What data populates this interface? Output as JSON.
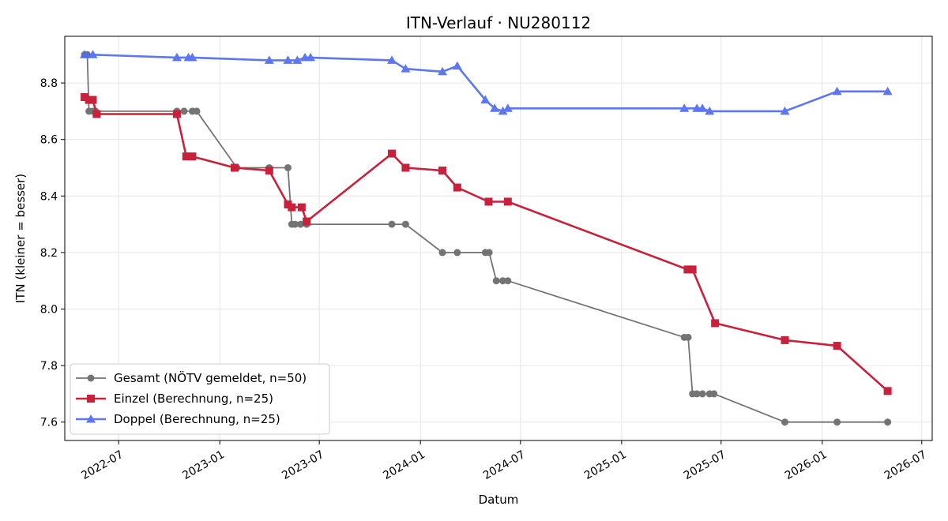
{
  "chart_data": {
    "type": "line",
    "title": "ITN-Verlauf · NU280112",
    "xlabel": "Datum",
    "ylabel": "ITN  (kleiner = besser)",
    "x_type": "date",
    "xlim": [
      "2022-03-25",
      "2026-07-20"
    ],
    "ylim": [
      7.535,
      8.965
    ],
    "x_ticks": [
      "2022-07-01",
      "2023-01-01",
      "2023-07-01",
      "2024-01-01",
      "2024-07-01",
      "2025-01-01",
      "2025-07-01",
      "2026-01-01",
      "2026-07-01"
    ],
    "x_tick_labels": [
      "2022-07",
      "2023-01",
      "2023-07",
      "2024-01",
      "2024-07",
      "2025-01",
      "2025-07",
      "2026-01",
      "2026-07"
    ],
    "y_ticks": [
      7.6,
      7.8,
      8.0,
      8.2,
      8.4,
      8.6,
      8.8
    ],
    "y_tick_labels": [
      "7.6",
      "7.8",
      "8.0",
      "8.2",
      "8.4",
      "8.6",
      "8.8"
    ],
    "grid": true,
    "legend_position": "bottom-left",
    "series": [
      {
        "name": "Gesamt (NÖTV gemeldet, n=50)",
        "color": "#404040",
        "marker": "circle",
        "points": [
          [
            "2022-04-30",
            8.9
          ],
          [
            "2022-05-05",
            8.9
          ],
          [
            "2022-05-08",
            8.7
          ],
          [
            "2022-05-15",
            8.7
          ],
          [
            "2022-05-20",
            8.7
          ],
          [
            "2022-10-15",
            8.7
          ],
          [
            "2022-10-28",
            8.7
          ],
          [
            "2022-11-12",
            8.7
          ],
          [
            "2022-11-20",
            8.7
          ],
          [
            "2023-02-01",
            8.5
          ],
          [
            "2023-04-01",
            8.5
          ],
          [
            "2023-05-05",
            8.5
          ],
          [
            "2023-05-12",
            8.3
          ],
          [
            "2023-05-18",
            8.3
          ],
          [
            "2023-05-28",
            8.3
          ],
          [
            "2023-06-08",
            8.3
          ],
          [
            "2023-11-10",
            8.3
          ],
          [
            "2023-12-05",
            8.3
          ],
          [
            "2024-02-10",
            8.2
          ],
          [
            "2024-03-08",
            8.2
          ],
          [
            "2024-04-28",
            8.2
          ],
          [
            "2024-05-05",
            8.2
          ],
          [
            "2024-05-18",
            8.1
          ],
          [
            "2024-05-30",
            8.1
          ],
          [
            "2024-06-08",
            8.1
          ],
          [
            "2025-04-25",
            7.9
          ],
          [
            "2025-05-02",
            7.9
          ],
          [
            "2025-05-10",
            7.7
          ],
          [
            "2025-05-18",
            7.7
          ],
          [
            "2025-05-28",
            7.7
          ],
          [
            "2025-06-10",
            7.7
          ],
          [
            "2025-06-18",
            7.7
          ],
          [
            "2025-10-25",
            7.6
          ],
          [
            "2026-01-28",
            7.6
          ],
          [
            "2026-04-30",
            7.6
          ]
        ]
      },
      {
        "name": "Einzel (Berechnung, n=25)",
        "color": "#c8213c",
        "marker": "square",
        "points": [
          [
            "2022-04-30",
            8.75
          ],
          [
            "2022-05-08",
            8.74
          ],
          [
            "2022-05-15",
            8.74
          ],
          [
            "2022-05-22",
            8.69
          ],
          [
            "2022-10-15",
            8.69
          ],
          [
            "2022-11-01",
            8.54
          ],
          [
            "2022-11-12",
            8.54
          ],
          [
            "2023-01-28",
            8.5
          ],
          [
            "2023-04-01",
            8.49
          ],
          [
            "2023-05-05",
            8.37
          ],
          [
            "2023-05-12",
            8.36
          ],
          [
            "2023-05-30",
            8.36
          ],
          [
            "2023-06-08",
            8.31
          ],
          [
            "2023-11-10",
            8.55
          ],
          [
            "2023-12-05",
            8.5
          ],
          [
            "2024-02-10",
            8.49
          ],
          [
            "2024-03-08",
            8.43
          ],
          [
            "2024-05-04",
            8.38
          ],
          [
            "2024-06-08",
            8.38
          ],
          [
            "2025-05-01",
            8.14
          ],
          [
            "2025-05-10",
            8.14
          ],
          [
            "2025-06-20",
            7.95
          ],
          [
            "2025-10-25",
            7.89
          ],
          [
            "2026-01-28",
            7.87
          ],
          [
            "2026-04-30",
            7.71
          ]
        ]
      },
      {
        "name": "Doppel (Berechnung, n=25)",
        "color": "#4f6cf0",
        "marker": "triangle",
        "points": [
          [
            "2022-04-30",
            8.9
          ],
          [
            "2022-05-15",
            8.9
          ],
          [
            "2022-10-15",
            8.89
          ],
          [
            "2022-11-05",
            8.89
          ],
          [
            "2022-11-12",
            8.89
          ],
          [
            "2023-04-01",
            8.88
          ],
          [
            "2023-05-05",
            8.88
          ],
          [
            "2023-05-22",
            8.88
          ],
          [
            "2023-06-05",
            8.89
          ],
          [
            "2023-06-15",
            8.89
          ],
          [
            "2023-11-10",
            8.88
          ],
          [
            "2023-12-05",
            8.85
          ],
          [
            "2024-02-10",
            8.84
          ],
          [
            "2024-03-08",
            8.86
          ],
          [
            "2024-04-28",
            8.74
          ],
          [
            "2024-05-15",
            8.71
          ],
          [
            "2024-05-30",
            8.7
          ],
          [
            "2024-06-08",
            8.71
          ],
          [
            "2025-04-25",
            8.71
          ],
          [
            "2025-05-18",
            8.71
          ],
          [
            "2025-05-28",
            8.71
          ],
          [
            "2025-06-10",
            8.7
          ],
          [
            "2025-10-25",
            8.7
          ],
          [
            "2026-01-28",
            8.77
          ],
          [
            "2026-04-30",
            8.77
          ]
        ]
      }
    ]
  }
}
